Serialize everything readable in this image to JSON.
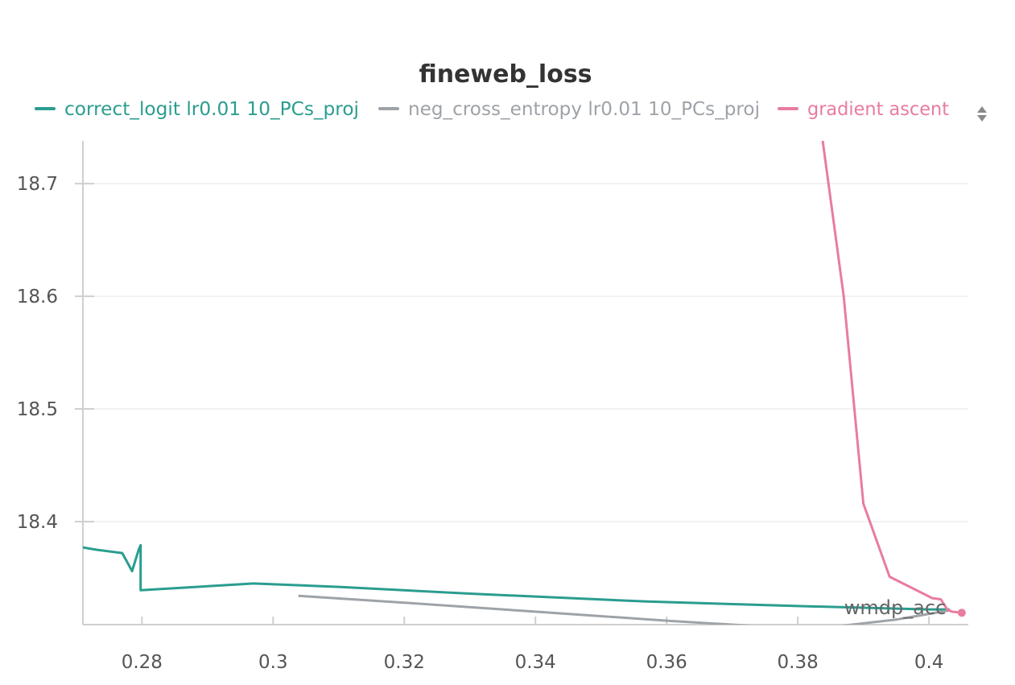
{
  "chart_data": {
    "type": "line",
    "title": "fineweb_loss",
    "xlabel": "wmdp_acc",
    "ylabel": "",
    "xlim": [
      0.271,
      0.406
    ],
    "ylim": [
      18.3085,
      18.738
    ],
    "x_ticks": [
      0.28,
      0.3,
      0.32,
      0.34,
      0.36,
      0.38,
      0.4
    ],
    "x_tick_labels": [
      "0.28",
      "0.3",
      "0.32",
      "0.34",
      "0.36",
      "0.38",
      "0.4"
    ],
    "y_ticks": [
      18.4,
      18.5,
      18.6,
      18.7
    ],
    "y_tick_labels": [
      "18.4",
      "18.5",
      "18.6",
      "18.7"
    ],
    "grid": true,
    "legend_position": "top",
    "series": [
      {
        "name": "correct_logit lr0.01 10_PCs_proj",
        "color": "#2a9d8f",
        "points": [
          [
            0.271,
            18.377
          ],
          [
            0.273,
            18.375
          ],
          [
            0.277,
            18.372
          ],
          [
            0.2785,
            18.356
          ],
          [
            0.2795,
            18.375
          ],
          [
            0.2798,
            18.379
          ],
          [
            0.2798,
            18.339
          ],
          [
            0.297,
            18.345
          ],
          [
            0.31,
            18.342
          ],
          [
            0.33,
            18.336
          ],
          [
            0.357,
            18.329
          ],
          [
            0.38,
            18.325
          ],
          [
            0.4,
            18.322
          ],
          [
            0.403,
            18.322
          ]
        ]
      },
      {
        "name": "neg_cross_entropy lr0.01 10_PCs_proj",
        "color": "#9ea3a8",
        "points": [
          [
            0.304,
            18.334
          ],
          [
            0.32,
            18.328
          ],
          [
            0.34,
            18.32
          ],
          [
            0.36,
            18.312
          ],
          [
            0.38,
            18.305
          ],
          [
            0.383,
            18.305
          ],
          [
            0.395,
            18.313
          ],
          [
            0.403,
            18.321
          ]
        ]
      },
      {
        "name": "gradient ascent",
        "color": "#e87ca0",
        "points": [
          [
            0.3838,
            18.738
          ],
          [
            0.387,
            18.6
          ],
          [
            0.39,
            18.416
          ],
          [
            0.394,
            18.351
          ],
          [
            0.4005,
            18.332
          ],
          [
            0.4018,
            18.331
          ],
          [
            0.4028,
            18.322
          ],
          [
            0.4035,
            18.32
          ],
          [
            0.405,
            18.319
          ]
        ]
      }
    ]
  },
  "icons": {
    "legend_scroll": "sort-arrows-icon"
  },
  "colors": {
    "axis": "#cfcfcf",
    "grid": "#eeeeee",
    "title": "#333333"
  }
}
